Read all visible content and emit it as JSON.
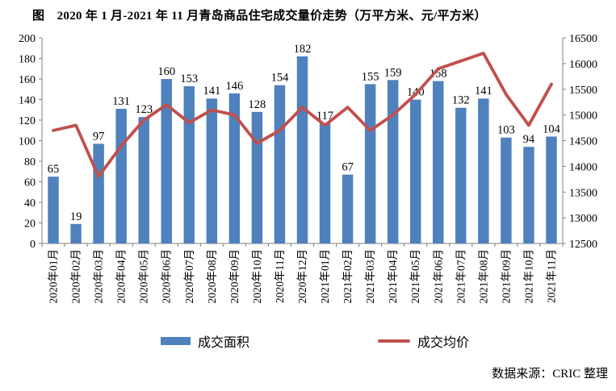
{
  "title": {
    "text": "图　2020 年 1 月-2021 年 11 月青岛商品住宅成交量价走势（万平方米、元/平方米）"
  },
  "legend": {
    "area_label": "成交面积",
    "price_label": "成交均价"
  },
  "source": {
    "text": "数据来源：CRIC 整理"
  },
  "colors": {
    "bar": "#4F81BD",
    "line": "#C0504D",
    "axis_line": "#808080",
    "text": "#000000"
  },
  "chart_data": {
    "type": "bar",
    "subtype": "combo-bar-line",
    "title": "图　2020 年 1 月-2021 年 11 月青岛商品住宅成交量价走势（万平方米、元/平方米）",
    "grid": false,
    "legend_position": "bottom",
    "categories": [
      "2020年01月",
      "2020年02月",
      "2020年03月",
      "2020年04月",
      "2020年05月",
      "2020年06月",
      "2020年07月",
      "2020年08月",
      "2020年09月",
      "2020年10月",
      "2020年11月",
      "2020年12月",
      "2021年01月",
      "2021年02月",
      "2021年03月",
      "2021年04月",
      "2021年05月",
      "2021年06月",
      "2021年07月",
      "2021年08月",
      "2021年09月",
      "2021年10月",
      "2021年11月"
    ],
    "series": [
      {
        "name": "成交面积",
        "type": "bar",
        "axis": "left",
        "unit": "万平方米",
        "color": "#4F81BD",
        "values": [
          65,
          19,
          97,
          131,
          123,
          160,
          153,
          141,
          146,
          128,
          154,
          182,
          117,
          67,
          155,
          159,
          140,
          158,
          132,
          141,
          103,
          94,
          104
        ],
        "data_labels": true
      },
      {
        "name": "成交均价",
        "type": "line",
        "axis": "right",
        "unit": "元/平方米",
        "color": "#C0504D",
        "values": [
          14700,
          14800,
          13800,
          14400,
          14900,
          15200,
          14850,
          15100,
          15000,
          14450,
          14700,
          15150,
          14800,
          15150,
          14700,
          15000,
          15400,
          15900,
          16050,
          16200,
          15400,
          14800,
          15600
        ],
        "data_labels": false
      }
    ],
    "left_axis": {
      "min": 0,
      "max": 200,
      "step": 20
    },
    "right_axis": {
      "min": 12500,
      "max": 16500,
      "step": 500
    }
  }
}
